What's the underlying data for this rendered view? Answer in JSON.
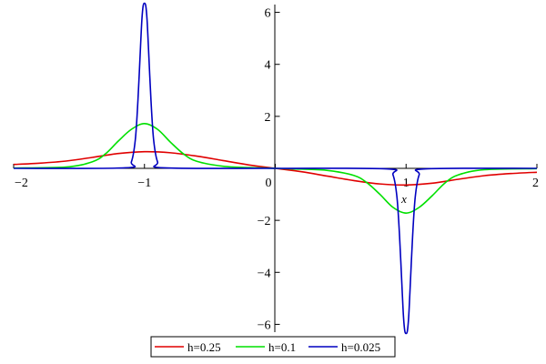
{
  "chart_data": {
    "type": "line",
    "title": "",
    "xlabel": "x",
    "ylabel": "",
    "xlim": [
      -2,
      2
    ],
    "ylim": [
      -6.3,
      6.3
    ],
    "x_ticks": [
      -2,
      -1,
      0,
      1,
      2
    ],
    "y_ticks": [
      -6,
      -4,
      -2,
      2,
      4,
      6
    ],
    "x_tick_labels": [
      "−2",
      "−1",
      "0",
      "1",
      "2"
    ],
    "y_tick_labels": [
      "−6",
      "−4",
      "−2",
      "2",
      "4",
      "6"
    ],
    "grid": false,
    "legend_position": "bottom",
    "series": [
      {
        "name": "h=0.25",
        "color": "#e00000",
        "x": [
          -2,
          -1.8,
          -1.6,
          -1.4,
          -1.2,
          -1,
          -0.8,
          -0.6,
          -0.4,
          -0.2,
          0,
          0.2,
          0.4,
          0.6,
          0.8,
          1,
          1.2,
          1.4,
          1.6,
          1.8,
          2
        ],
        "y": [
          0.15,
          0.2,
          0.28,
          0.42,
          0.57,
          0.64,
          0.6,
          0.47,
          0.3,
          0.13,
          0,
          -0.13,
          -0.3,
          -0.47,
          -0.6,
          -0.64,
          -0.57,
          -0.42,
          -0.28,
          -0.2,
          -0.15
        ]
      },
      {
        "name": "h=0.1",
        "color": "#00e000",
        "x": [
          -2,
          -1.6,
          -1.4,
          -1.3,
          -1.2,
          -1.1,
          -1,
          -0.9,
          -0.8,
          -0.7,
          -0.6,
          -0.4,
          -0.2,
          0,
          0.2,
          0.4,
          0.6,
          0.7,
          0.8,
          0.9,
          1,
          1.1,
          1.2,
          1.3,
          1.4,
          1.6,
          2
        ],
        "y": [
          0.01,
          0.05,
          0.25,
          0.55,
          1.05,
          1.5,
          1.72,
          1.5,
          1.0,
          0.55,
          0.27,
          0.08,
          0.03,
          0,
          -0.03,
          -0.08,
          -0.27,
          -0.55,
          -1.0,
          -1.5,
          -1.72,
          -1.5,
          -1.05,
          -0.55,
          -0.25,
          -0.05,
          -0.01
        ]
      },
      {
        "name": "h=0.025",
        "color": "#0000c0",
        "x": [
          -2,
          -1.15,
          -1.1,
          -1.07,
          -1.05,
          -1.03,
          -1.02,
          -1.01,
          -1,
          -0.99,
          -0.98,
          -0.97,
          -0.95,
          -0.93,
          -0.9,
          -0.85,
          0,
          0.85,
          0.9,
          0.93,
          0.95,
          0.97,
          0.98,
          0.99,
          1,
          1.01,
          1.02,
          1.03,
          1.05,
          1.07,
          1.1,
          1.15,
          2
        ],
        "y": [
          0,
          0.02,
          0.25,
          1.1,
          2.6,
          4.7,
          5.7,
          6.25,
          6.35,
          6.25,
          5.7,
          4.7,
          2.6,
          1.1,
          0.25,
          0.02,
          0,
          -0.02,
          -0.25,
          -1.1,
          -2.6,
          -4.7,
          -5.7,
          -6.25,
          -6.35,
          -6.25,
          -5.7,
          -4.7,
          -2.6,
          -1.1,
          -0.25,
          -0.02,
          0
        ]
      }
    ]
  }
}
